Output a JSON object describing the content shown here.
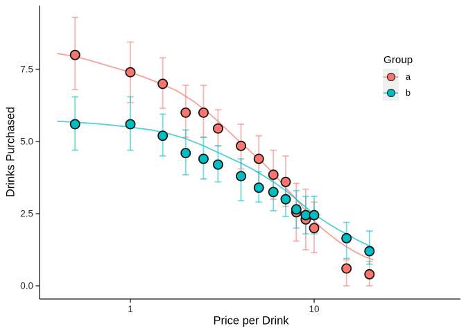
{
  "chart_data": {
    "type": "scatter",
    "subtype": "points-with-errorbars-and-smooth-curves",
    "title": "",
    "xlabel": "Price per Drink",
    "ylabel": "Drinks Purchased",
    "x_scale": "log10",
    "x_range": [
      0.38,
      23
    ],
    "y_range": [
      -0.35,
      9.75
    ],
    "grid": "off",
    "x_ticks": {
      "values": [
        1,
        10
      ],
      "labels": [
        "1",
        "10"
      ]
    },
    "y_ticks": {
      "values": [
        0,
        2.5,
        5,
        7.5
      ],
      "labels": [
        "0.0",
        "2.5",
        "5.0",
        "7.5"
      ]
    },
    "legend": {
      "title": "Group",
      "position": "right"
    },
    "series": [
      {
        "name": "a",
        "color": "#F8766D",
        "points": [
          {
            "x": 0.5,
            "y": 8.0,
            "ymin": 6.8,
            "ymax": 9.3
          },
          {
            "x": 1,
            "y": 7.4,
            "ymin": 6.35,
            "ymax": 8.45
          },
          {
            "x": 1.5,
            "y": 7.0,
            "ymin": 6.15,
            "ymax": 7.9
          },
          {
            "x": 2,
            "y": 6.0,
            "ymin": 5.15,
            "ymax": 6.95
          },
          {
            "x": 2.5,
            "y": 6.0,
            "ymin": 5.15,
            "ymax": 6.95
          },
          {
            "x": 3,
            "y": 5.45,
            "ymin": 4.85,
            "ymax": 6.1
          },
          {
            "x": 4,
            "y": 4.85,
            "ymin": 4.05,
            "ymax": 5.6
          },
          {
            "x": 5,
            "y": 4.4,
            "ymin": 3.4,
            "ymax": 5.2
          },
          {
            "x": 6,
            "y": 3.85,
            "ymin": 3.0,
            "ymax": 4.7
          },
          {
            "x": 7,
            "y": 3.6,
            "ymin": 2.75,
            "ymax": 4.5
          },
          {
            "x": 8,
            "y": 2.55,
            "ymin": 1.55,
            "ymax": 3.55
          },
          {
            "x": 9,
            "y": 2.3,
            "ymin": 1.25,
            "ymax": 3.35
          },
          {
            "x": 10,
            "y": 2.0,
            "ymin": 1.15,
            "ymax": 2.9
          },
          {
            "x": 15,
            "y": 0.6,
            "ymin": 0.0,
            "ymax": 0.9
          },
          {
            "x": 20,
            "y": 0.4,
            "ymin": 0.0,
            "ymax": 0.85
          }
        ],
        "smooth": [
          [
            0.4,
            8.05
          ],
          [
            0.5,
            7.95
          ],
          [
            0.65,
            7.75
          ],
          [
            0.8,
            7.58
          ],
          [
            1,
            7.4
          ],
          [
            1.2,
            7.22
          ],
          [
            1.5,
            6.98
          ],
          [
            1.8,
            6.75
          ],
          [
            2.2,
            6.4
          ],
          [
            2.6,
            6.05
          ],
          [
            3,
            5.7
          ],
          [
            3.5,
            5.3
          ],
          [
            4,
            4.95
          ],
          [
            4.6,
            4.6
          ],
          [
            5.2,
            4.3
          ],
          [
            6,
            3.9
          ],
          [
            7,
            3.4
          ],
          [
            8,
            3.0
          ],
          [
            9,
            2.6
          ],
          [
            10,
            2.25
          ],
          [
            11,
            2.0
          ],
          [
            12,
            1.8
          ],
          [
            13.5,
            1.55
          ],
          [
            15,
            1.35
          ],
          [
            17,
            1.15
          ],
          [
            19,
            1.0
          ],
          [
            21,
            0.9
          ]
        ]
      },
      {
        "name": "b",
        "color": "#00BFC4",
        "points": [
          {
            "x": 0.5,
            "y": 5.6,
            "ymin": 4.7,
            "ymax": 6.55
          },
          {
            "x": 1,
            "y": 5.6,
            "ymin": 4.7,
            "ymax": 6.55
          },
          {
            "x": 1.5,
            "y": 5.2,
            "ymin": 4.5,
            "ymax": 5.95
          },
          {
            "x": 2,
            "y": 4.6,
            "ymin": 3.85,
            "ymax": 5.4
          },
          {
            "x": 2.5,
            "y": 4.4,
            "ymin": 3.7,
            "ymax": 5.15
          },
          {
            "x": 3,
            "y": 4.2,
            "ymin": 3.6,
            "ymax": 4.85
          },
          {
            "x": 4,
            "y": 3.8,
            "ymin": 2.95,
            "ymax": 4.4
          },
          {
            "x": 5,
            "y": 3.4,
            "ymin": 2.9,
            "ymax": 3.95
          },
          {
            "x": 6,
            "y": 3.25,
            "ymin": 2.6,
            "ymax": 3.9
          },
          {
            "x": 7,
            "y": 3.0,
            "ymin": 2.4,
            "ymax": 3.65
          },
          {
            "x": 8,
            "y": 2.65,
            "ymin": 2.0,
            "ymax": 3.3
          },
          {
            "x": 9,
            "y": 2.45,
            "ymin": 1.8,
            "ymax": 3.1
          },
          {
            "x": 10,
            "y": 2.45,
            "ymin": 1.8,
            "ymax": 3.1
          },
          {
            "x": 15,
            "y": 1.65,
            "ymin": 0.95,
            "ymax": 2.2
          },
          {
            "x": 20,
            "y": 1.2,
            "ymin": 0.75,
            "ymax": 1.9
          }
        ],
        "smooth": [
          [
            0.4,
            5.7
          ],
          [
            0.5,
            5.67
          ],
          [
            0.7,
            5.6
          ],
          [
            1,
            5.5
          ],
          [
            1.3,
            5.4
          ],
          [
            1.6,
            5.28
          ],
          [
            2,
            5.1
          ],
          [
            2.5,
            4.85
          ],
          [
            3,
            4.62
          ],
          [
            3.5,
            4.42
          ],
          [
            4,
            4.25
          ],
          [
            4.6,
            4.05
          ],
          [
            5.2,
            3.85
          ],
          [
            6,
            3.6
          ],
          [
            7,
            3.3
          ],
          [
            8,
            3.0
          ],
          [
            9,
            2.72
          ],
          [
            10,
            2.48
          ],
          [
            11,
            2.3
          ],
          [
            12,
            2.15
          ],
          [
            13.5,
            1.95
          ],
          [
            15,
            1.8
          ],
          [
            17,
            1.6
          ],
          [
            19,
            1.45
          ],
          [
            21,
            1.32
          ]
        ]
      }
    ]
  },
  "style_colors": {
    "axis": "#1a1a1a",
    "point_outline": "#111111",
    "legend_key_bg": "#F0F0F0"
  }
}
